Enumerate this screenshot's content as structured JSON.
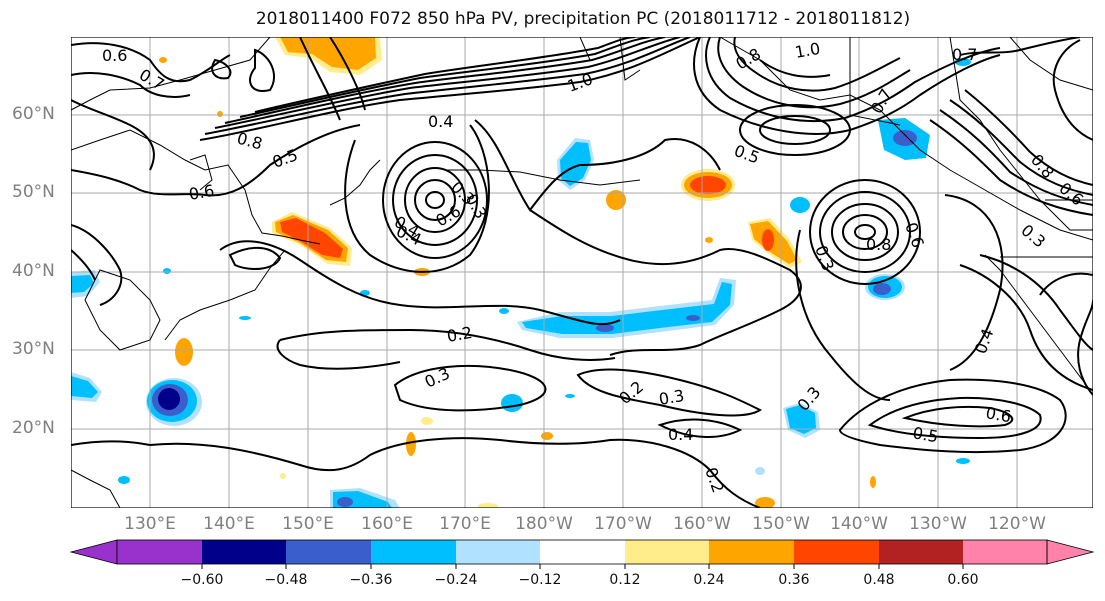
{
  "title": "2018011400 F072 850 hPa PV, precipitation PC (2018011712 - 2018011812)",
  "lat_labels": [
    "60°N",
    "50°N",
    "40°N",
    "30°N",
    "20°N"
  ],
  "lon_labels": [
    "130°E",
    "140°E",
    "150°E",
    "160°E",
    "170°E",
    "180°W",
    "170°W",
    "160°W",
    "150°W",
    "140°W",
    "130°W",
    "120°W"
  ],
  "contour_labels": [
    "0.6",
    "0.7",
    "0.8",
    "0.5",
    "0.6",
    "1.0",
    "0.4",
    "0.3",
    "0.4",
    "0.3",
    "0.6",
    "0.4",
    "0.2",
    "0.3",
    "0.2",
    "0.3",
    "0.4",
    "0.2",
    "0.6",
    "0.5",
    "0.3",
    "0.4",
    "0.8",
    "0.6",
    "0.8",
    "0.7",
    "0.5",
    "1.0",
    "0.7",
    "0.3",
    "0.8",
    "0.6",
    "0.3"
  ],
  "colorbar": {
    "ticks": [
      "−0.60",
      "−0.48",
      "−0.36",
      "−0.24",
      "−0.12",
      "0.12",
      "0.24",
      "0.36",
      "0.48",
      "0.60"
    ],
    "colors": [
      "#9932cc",
      "#00008b",
      "#3a5fcd",
      "#00bfff",
      "#b0e2ff",
      "#ffffff",
      "#ffec8b",
      "#ffa500",
      "#ff4500",
      "#b22222",
      "#ff82ab"
    ]
  }
}
